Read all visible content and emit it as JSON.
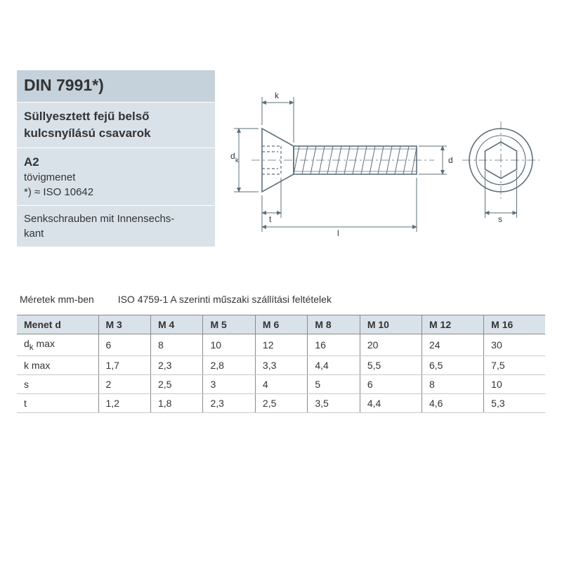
{
  "header": {
    "title": "DIN 7991*)",
    "subtitle_line1": "Süllyesztett fejű belső",
    "subtitle_line2": "kulcsnyílású csavarok",
    "mat": "A2",
    "mat_line2": "tövigmenet",
    "mat_line3": "*) ≈ ISO 10642",
    "de_line1": "Senkschrauben mit Innensechs-",
    "de_line2": "kant"
  },
  "diagram": {
    "labels": {
      "k": "k",
      "dk": "d",
      "dk_sub": "k",
      "t": "t",
      "l": "l",
      "d": "d",
      "s": "s"
    },
    "stroke": "#5f6f7a",
    "stroke_thin": "#6a7a85",
    "arrow": "#5f6f7a"
  },
  "caption": {
    "left": "Méretek mm-ben",
    "right": "ISO 4759-1 A szerinti műszaki szállítási feltételek"
  },
  "table": {
    "corner": "Menet d",
    "columns": [
      "M 3",
      "M 4",
      "M 5",
      "M 6",
      "M 8",
      "M 10",
      "M 12",
      "M 16"
    ],
    "rows": [
      {
        "label_html": "d<sub>k</sub> max",
        "cells": [
          "6",
          "8",
          "10",
          "12",
          "16",
          "20",
          "24",
          "30"
        ]
      },
      {
        "label_html": "k max",
        "cells": [
          "1,7",
          "2,3",
          "2,8",
          "3,3",
          "4,4",
          "5,5",
          "6,5",
          "7,5"
        ]
      },
      {
        "label_html": "s",
        "cells": [
          "2",
          "2,5",
          "3",
          "4",
          "5",
          "6",
          "8",
          "10"
        ]
      },
      {
        "label_html": "t",
        "cells": [
          "1,2",
          "1,8",
          "2,3",
          "2,5",
          "3,5",
          "4,4",
          "4,6",
          "5,3"
        ]
      }
    ],
    "header_bg": "#d9e2e9",
    "border_color": "#8a8a8a"
  }
}
